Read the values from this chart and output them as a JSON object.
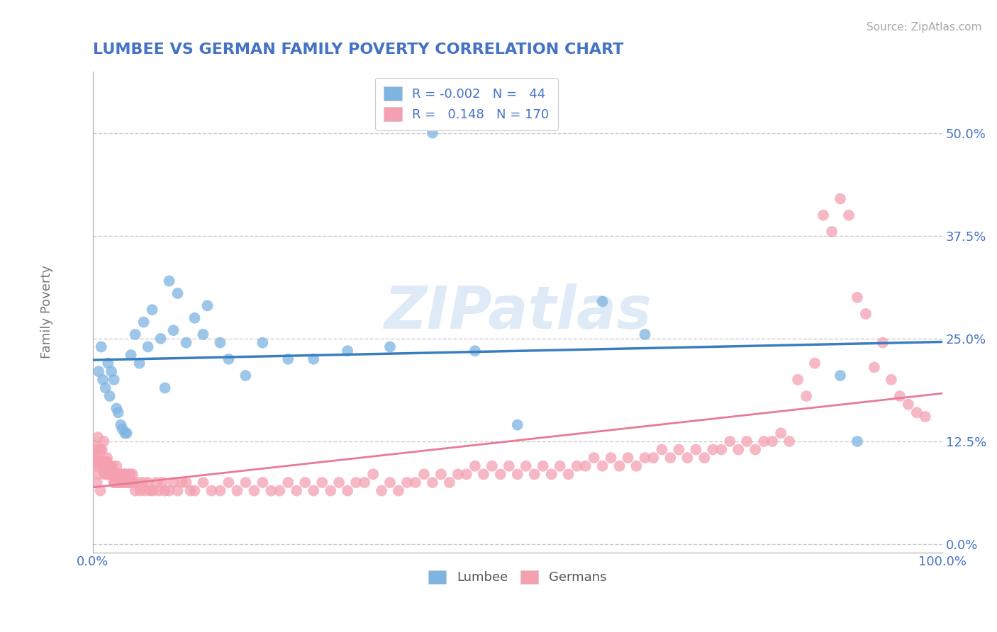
{
  "title": "LUMBEE VS GERMAN FAMILY POVERTY CORRELATION CHART",
  "source_text": "Source: ZipAtlas.com",
  "ylabel": "Family Poverty",
  "xlim": [
    0,
    1.0
  ],
  "ylim": [
    -0.01,
    0.575
  ],
  "yticks": [
    0.0,
    0.125,
    0.25,
    0.375,
    0.5
  ],
  "ytick_labels": [
    "0.0%",
    "12.5%",
    "25.0%",
    "37.5%",
    "50.0%"
  ],
  "xticks": [
    0.0,
    0.25,
    0.5,
    0.75,
    1.0
  ],
  "xtick_labels": [
    "0.0%",
    "",
    "",
    "",
    "100.0%"
  ],
  "lumbee_color": "#7EB4E2",
  "german_color": "#F4A0B0",
  "lumbee_line_color": "#3A7EBF",
  "german_line_color": "#E87A96",
  "lumbee_R": -0.002,
  "lumbee_N": 44,
  "german_R": 0.148,
  "german_N": 170,
  "background_color": "#ffffff",
  "grid_color": "#cccccc",
  "title_color": "#4472C4",
  "tick_color": "#4472C4",
  "label_color": "#888888",
  "watermark_text": "ZIPatlas",
  "watermark_color": "#c8dff0",
  "lumbee_x": [
    0.007,
    0.01,
    0.012,
    0.015,
    0.018,
    0.02,
    0.022,
    0.025,
    0.028,
    0.03,
    0.033,
    0.035,
    0.038,
    0.04,
    0.045,
    0.05,
    0.055,
    0.06,
    0.065,
    0.07,
    0.08,
    0.085,
    0.09,
    0.095,
    0.1,
    0.11,
    0.12,
    0.13,
    0.135,
    0.15,
    0.16,
    0.18,
    0.2,
    0.23,
    0.26,
    0.3,
    0.35,
    0.4,
    0.45,
    0.5,
    0.6,
    0.65,
    0.88,
    0.9
  ],
  "lumbee_y": [
    0.21,
    0.24,
    0.2,
    0.19,
    0.22,
    0.18,
    0.21,
    0.2,
    0.165,
    0.16,
    0.145,
    0.14,
    0.135,
    0.135,
    0.23,
    0.255,
    0.22,
    0.27,
    0.24,
    0.285,
    0.25,
    0.19,
    0.32,
    0.26,
    0.305,
    0.245,
    0.275,
    0.255,
    0.29,
    0.245,
    0.225,
    0.205,
    0.245,
    0.225,
    0.225,
    0.235,
    0.24,
    0.5,
    0.235,
    0.145,
    0.295,
    0.255,
    0.205,
    0.125
  ],
  "german_x": [
    0.002,
    0.003,
    0.004,
    0.005,
    0.006,
    0.007,
    0.008,
    0.009,
    0.01,
    0.011,
    0.012,
    0.013,
    0.014,
    0.015,
    0.016,
    0.017,
    0.018,
    0.019,
    0.02,
    0.021,
    0.022,
    0.023,
    0.024,
    0.025,
    0.026,
    0.027,
    0.028,
    0.029,
    0.03,
    0.031,
    0.032,
    0.034,
    0.036,
    0.038,
    0.04,
    0.042,
    0.044,
    0.046,
    0.048,
    0.05,
    0.053,
    0.056,
    0.059,
    0.062,
    0.065,
    0.068,
    0.071,
    0.075,
    0.078,
    0.082,
    0.085,
    0.09,
    0.095,
    0.1,
    0.105,
    0.11,
    0.115,
    0.12,
    0.13,
    0.14,
    0.15,
    0.16,
    0.17,
    0.18,
    0.19,
    0.2,
    0.21,
    0.22,
    0.23,
    0.24,
    0.25,
    0.26,
    0.27,
    0.28,
    0.29,
    0.3,
    0.31,
    0.32,
    0.33,
    0.34,
    0.35,
    0.36,
    0.37,
    0.38,
    0.39,
    0.4,
    0.41,
    0.42,
    0.43,
    0.44,
    0.45,
    0.46,
    0.47,
    0.48,
    0.49,
    0.5,
    0.51,
    0.52,
    0.53,
    0.54,
    0.55,
    0.56,
    0.57,
    0.58,
    0.59,
    0.6,
    0.61,
    0.62,
    0.63,
    0.64,
    0.65,
    0.66,
    0.67,
    0.68,
    0.69,
    0.7,
    0.71,
    0.72,
    0.73,
    0.74,
    0.75,
    0.76,
    0.77,
    0.78,
    0.79,
    0.8,
    0.81,
    0.82,
    0.83,
    0.84,
    0.85,
    0.86,
    0.87,
    0.88,
    0.89,
    0.9,
    0.91,
    0.92,
    0.93,
    0.94,
    0.95,
    0.96,
    0.97,
    0.98,
    0.003,
    0.005,
    0.007,
    0.009,
    0.011,
    0.013,
    0.015,
    0.017,
    0.019,
    0.021,
    0.023,
    0.025,
    0.027,
    0.029,
    0.031,
    0.033,
    0.035,
    0.037,
    0.039,
    0.041,
    0.043,
    0.045,
    0.047,
    0.008,
    0.012,
    0.016
  ],
  "german_y": [
    0.105,
    0.12,
    0.11,
    0.115,
    0.13,
    0.1,
    0.095,
    0.115,
    0.1,
    0.095,
    0.1,
    0.095,
    0.085,
    0.095,
    0.085,
    0.105,
    0.085,
    0.095,
    0.085,
    0.095,
    0.085,
    0.09,
    0.085,
    0.075,
    0.085,
    0.075,
    0.095,
    0.075,
    0.085,
    0.075,
    0.075,
    0.085,
    0.075,
    0.085,
    0.075,
    0.075,
    0.085,
    0.075,
    0.075,
    0.065,
    0.075,
    0.065,
    0.075,
    0.065,
    0.075,
    0.065,
    0.065,
    0.075,
    0.065,
    0.075,
    0.065,
    0.065,
    0.075,
    0.065,
    0.075,
    0.075,
    0.065,
    0.065,
    0.075,
    0.065,
    0.065,
    0.075,
    0.065,
    0.075,
    0.065,
    0.075,
    0.065,
    0.065,
    0.075,
    0.065,
    0.075,
    0.065,
    0.075,
    0.065,
    0.075,
    0.065,
    0.075,
    0.075,
    0.085,
    0.065,
    0.075,
    0.065,
    0.075,
    0.075,
    0.085,
    0.075,
    0.085,
    0.075,
    0.085,
    0.085,
    0.095,
    0.085,
    0.095,
    0.085,
    0.095,
    0.085,
    0.095,
    0.085,
    0.095,
    0.085,
    0.095,
    0.085,
    0.095,
    0.095,
    0.105,
    0.095,
    0.105,
    0.095,
    0.105,
    0.095,
    0.105,
    0.105,
    0.115,
    0.105,
    0.115,
    0.105,
    0.115,
    0.105,
    0.115,
    0.115,
    0.125,
    0.115,
    0.125,
    0.115,
    0.125,
    0.125,
    0.135,
    0.125,
    0.2,
    0.18,
    0.22,
    0.4,
    0.38,
    0.42,
    0.4,
    0.3,
    0.28,
    0.215,
    0.245,
    0.2,
    0.18,
    0.17,
    0.16,
    0.155,
    0.095,
    0.075,
    0.085,
    0.065,
    0.115,
    0.125,
    0.095,
    0.1,
    0.09,
    0.085,
    0.095,
    0.075,
    0.085,
    0.075,
    0.085,
    0.075,
    0.085,
    0.075,
    0.085,
    0.075,
    0.085,
    0.075,
    0.085,
    0.11,
    0.09,
    0.1
  ]
}
